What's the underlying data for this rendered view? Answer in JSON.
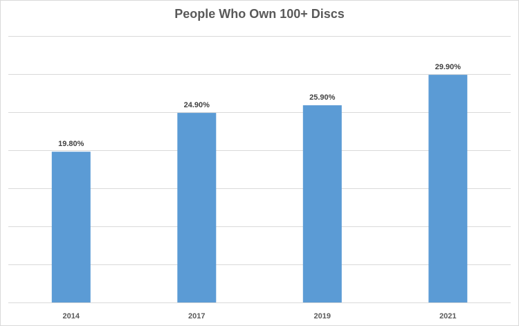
{
  "chart_data": {
    "type": "bar",
    "title": "People Who Own 100+ Discs",
    "categories": [
      "2014",
      "2017",
      "2019",
      "2021"
    ],
    "values": [
      19.8,
      24.9,
      25.9,
      29.9
    ],
    "data_labels": [
      "19.80%",
      "24.90%",
      "25.90%",
      "29.90%"
    ],
    "ylim": [
      0,
      35
    ],
    "y_gridline_step": 5,
    "grid": true,
    "bar_color": "#5b9bd5",
    "gridline_color": "#d9d9d9"
  }
}
